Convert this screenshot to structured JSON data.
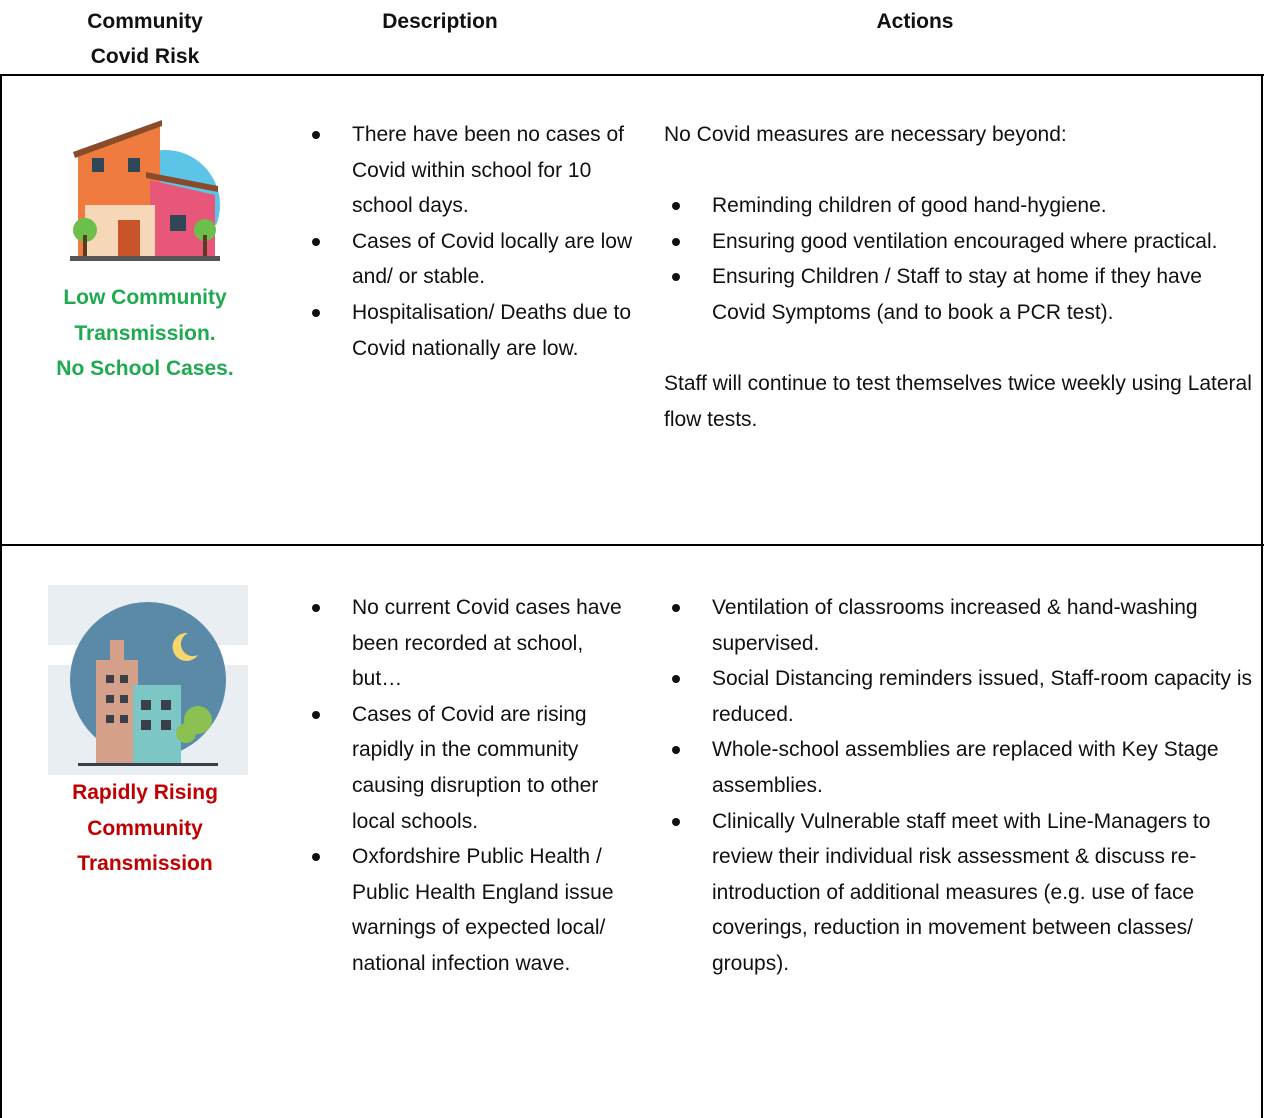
{
  "header": {
    "columns": [
      "Community Covid Risk",
      "Description",
      "Actions"
    ]
  },
  "rows": [
    {
      "risk_lines": [
        "Low Community",
        "Transmission.",
        "No School Cases."
      ],
      "description": [
        "There have been no cases of Covid within school for 10 school days.",
        "Cases of Covid locally are low and/ or stable.",
        "Hospitalisation/ Deaths due to Covid nationally are low."
      ],
      "actions": {
        "intro": "No Covid measures are necessary beyond:",
        "items": [
          "Reminding children of good hand-hygiene.",
          "Ensuring good ventilation encouraged where practical.",
          "Ensuring Children / Staff to stay at home if they have Covid Symptoms (and to book a PCR test)."
        ],
        "note": "Staff will continue to test themselves twice weekly using Lateral flow tests."
      }
    },
    {
      "risk_lines": [
        "Rapidly Rising",
        "Community",
        "Transmission"
      ],
      "description": [
        "No current Covid cases have been recorded at school, but…",
        "Cases of Covid are rising rapidly in the community causing disruption to other local schools.",
        "Oxfordshire Public Health / Public Health England issue warnings of expected local/ national infection wave."
      ],
      "actions": {
        "items": [
          "Ventilation of classrooms increased & hand-washing supervised.",
          "Social Distancing reminders issued, Staff-room capacity is reduced.",
          "Whole-school assemblies are replaced with Key Stage assemblies.",
          "Clinically Vulnerable staff meet with Line-Managers to review their individual risk assessment & discuss re-introduction of additional measures (e.g. use of face coverings, reduction in movement between classes/ groups)."
        ]
      }
    }
  ]
}
